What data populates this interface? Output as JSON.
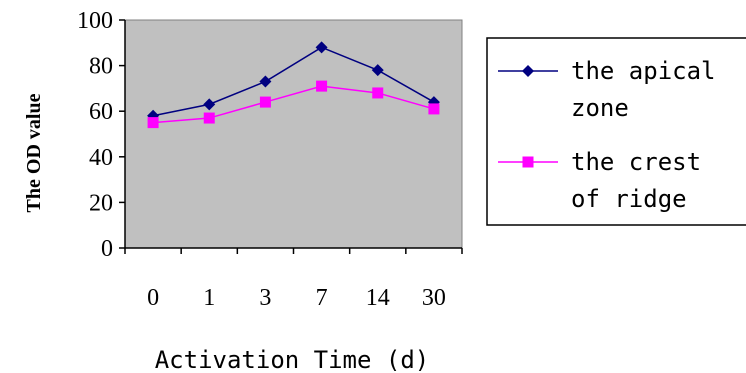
{
  "chart_data": {
    "type": "line",
    "categories": [
      "0",
      "1",
      "3",
      "7",
      "14",
      "30"
    ],
    "xlabel": "Activation Time (d)",
    "ylabel": "The OD value",
    "ylim": [
      0,
      100
    ],
    "yticks": [
      "0",
      "20",
      "40",
      "60",
      "80",
      "100"
    ],
    "grid": false,
    "plot_background": "#c0c0c0",
    "legend_position": "right",
    "series": [
      {
        "name": "the apical zone",
        "name_lines": [
          "the apical",
          "zone"
        ],
        "marker": "diamond",
        "color": "#000080",
        "values": [
          58,
          63,
          73,
          88,
          78,
          64
        ]
      },
      {
        "name": "the crest of ridge",
        "name_lines": [
          "the crest",
          "of ridge"
        ],
        "marker": "square",
        "color": "#ff00ff",
        "values": [
          55,
          57,
          64,
          71,
          68,
          61
        ]
      }
    ]
  }
}
